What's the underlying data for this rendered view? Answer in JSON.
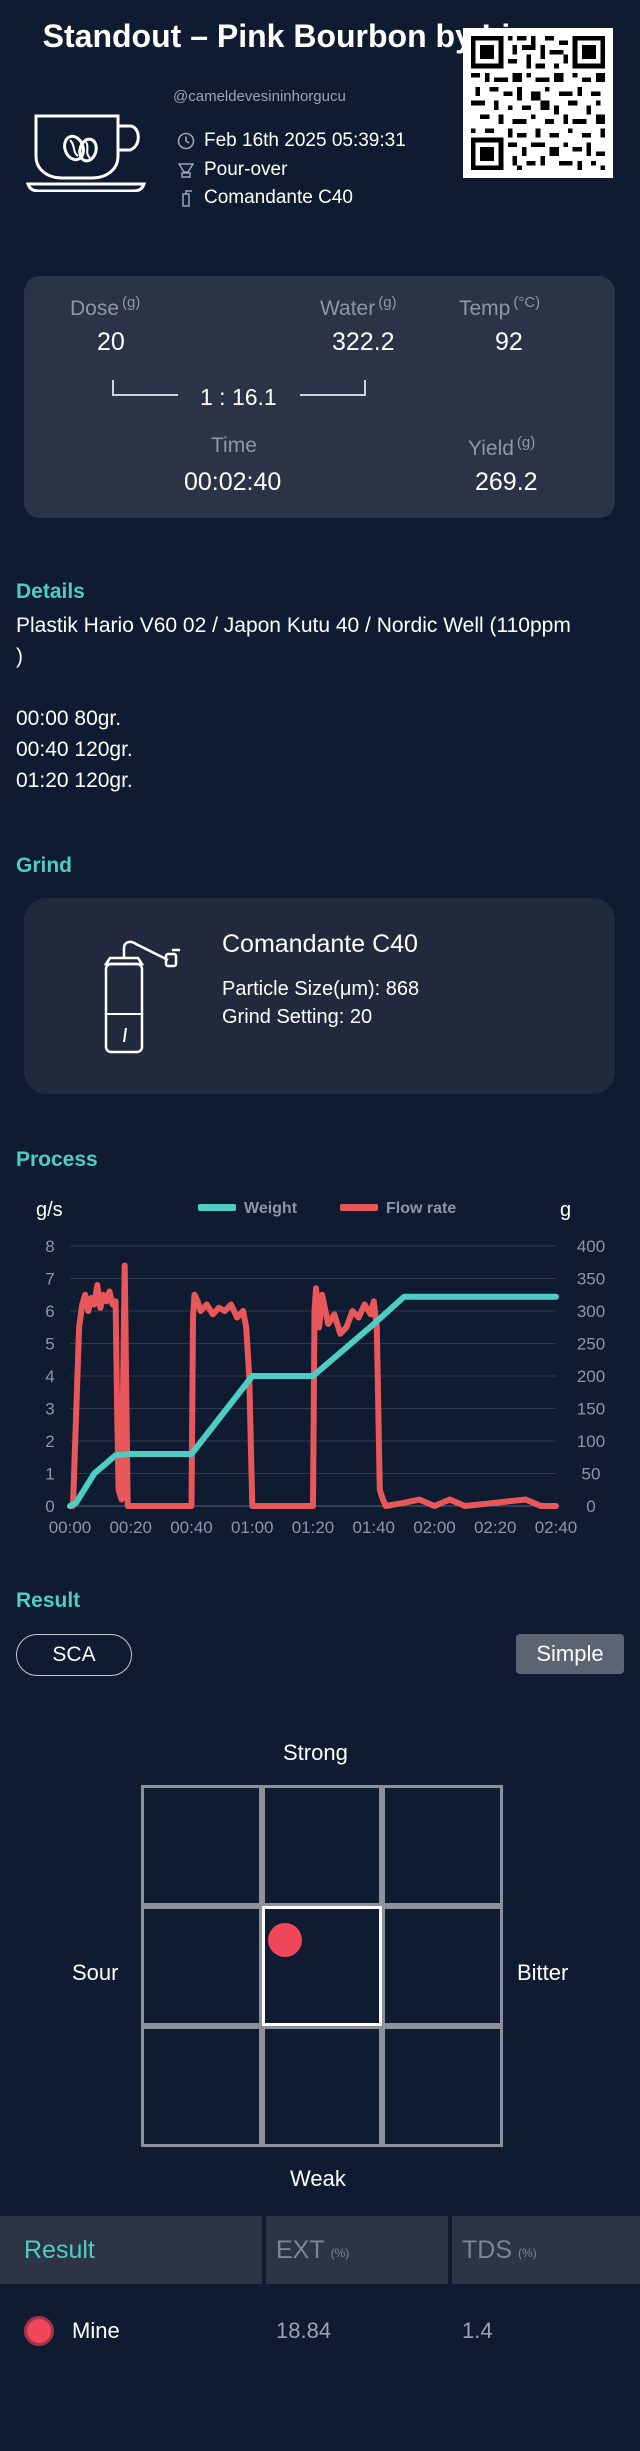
{
  "header": {
    "title": "Standout – Pink Bourbon by Linarco",
    "username": "@cameldevesininhorgucu",
    "date": "Feb 16th 2025 05:39:31",
    "method": "Pour-over",
    "grinder": "Comandante C40"
  },
  "params": {
    "dose_label": "Dose",
    "dose_unit": "(g)",
    "dose_value": "20",
    "water_label": "Water",
    "water_unit": "(g)",
    "water_value": "322.2",
    "temp_label": "Temp",
    "temp_unit": "(°C)",
    "temp_value": "92",
    "ratio": "1 : 16.1",
    "time_label": "Time",
    "time_value": "00:02:40",
    "yield_label": "Yield",
    "yield_unit": "(g)",
    "yield_value": "269.2"
  },
  "details": {
    "section_title": "Details",
    "lines": [
      "Plastik Hario V60 02 / Japon Kutu 40 / Nordic Well (110ppm",
      ")",
      "",
      "00:00 80gr.",
      "00:40 120gr.",
      "01:20 120gr."
    ]
  },
  "grind": {
    "section_title": "Grind",
    "name": "Comandante C40",
    "particle_size": "Particle Size(μm): 868",
    "grind_setting": "Grind Setting: 20"
  },
  "process": {
    "section_title": "Process"
  },
  "chart_data": {
    "type": "line",
    "title": "",
    "left_unit": "g/s",
    "right_unit": "g",
    "left_ylim": [
      0,
      8
    ],
    "right_ylim": [
      0,
      400
    ],
    "left_ticks": [
      "0",
      "1",
      "2",
      "3",
      "4",
      "5",
      "6",
      "7",
      "8"
    ],
    "right_ticks": [
      "0",
      "50",
      "100",
      "150",
      "200",
      "250",
      "300",
      "350",
      "400"
    ],
    "x_ticks": [
      "00:00",
      "00:20",
      "00:40",
      "01:00",
      "01:20",
      "01:40",
      "02:00",
      "02:20",
      "02:40"
    ],
    "xlim_seconds": [
      0,
      160
    ],
    "grid": true,
    "legend_position": "top-center",
    "series": [
      {
        "name": "Weight",
        "color": "#4ecdc4",
        "axis": "right",
        "x": [
          0,
          2,
          8,
          15,
          20,
          30,
          40,
          45,
          55,
          60,
          70,
          80,
          90,
          100,
          110,
          120,
          130,
          140,
          150,
          160
        ],
        "y": [
          0,
          5,
          50,
          78,
          80,
          80,
          80,
          110,
          170,
          200,
          200,
          200,
          240,
          280,
          322,
          322,
          322,
          322,
          322,
          322
        ]
      },
      {
        "name": "Flow rate",
        "color": "#e8585a",
        "axis": "left",
        "x": [
          0,
          1,
          3,
          4,
          5,
          6,
          7,
          8,
          9,
          10,
          11,
          12,
          13,
          14,
          15,
          15.5,
          16,
          17,
          18,
          19,
          40,
          40.5,
          41,
          42,
          43,
          45,
          47,
          49,
          51,
          53,
          55,
          57,
          58,
          59,
          60,
          80,
          80.5,
          81,
          82,
          83,
          85,
          87,
          89,
          91,
          93,
          95,
          97,
          99,
          100,
          101,
          102,
          103,
          104,
          110,
          115,
          120,
          125,
          130,
          140,
          150,
          155,
          160
        ],
        "y": [
          0,
          0,
          5.5,
          6.2,
          6.5,
          6.0,
          6.4,
          6.2,
          6.8,
          6.1,
          6.5,
          6.3,
          6.6,
          6.2,
          6.3,
          3.0,
          0.5,
          0.2,
          7.4,
          0,
          0,
          5.8,
          6.5,
          6.3,
          6.0,
          6.2,
          5.9,
          6.1,
          6.0,
          6.2,
          5.8,
          6.0,
          5.5,
          4.0,
          0,
          0,
          6.0,
          6.7,
          5.5,
          6.5,
          5.6,
          5.9,
          5.3,
          5.5,
          6.0,
          5.8,
          6.2,
          5.9,
          6.3,
          5.5,
          0.5,
          0.2,
          0,
          0.1,
          0.2,
          0,
          0.2,
          0,
          0.1,
          0.2,
          0,
          0
        ]
      }
    ]
  },
  "result": {
    "section_title": "Result",
    "sca_label": "SCA",
    "simple_label": "Simple",
    "strong": "Strong",
    "weak": "Weak",
    "sour": "Sour",
    "bitter": "Bitter",
    "dot_color": "#f0475b",
    "table": {
      "col_result": "Result",
      "col_ext": "EXT",
      "col_ext_unit": "(%)",
      "col_tds": "TDS",
      "col_tds_unit": "(%)",
      "row_name": "Mine",
      "row_ext": "18.84",
      "row_tds": "1.4"
    }
  },
  "colors": {
    "background": "#0f1b30",
    "accent": "#4ecdc4",
    "flow": "#e8585a",
    "card": "#2a3446"
  }
}
